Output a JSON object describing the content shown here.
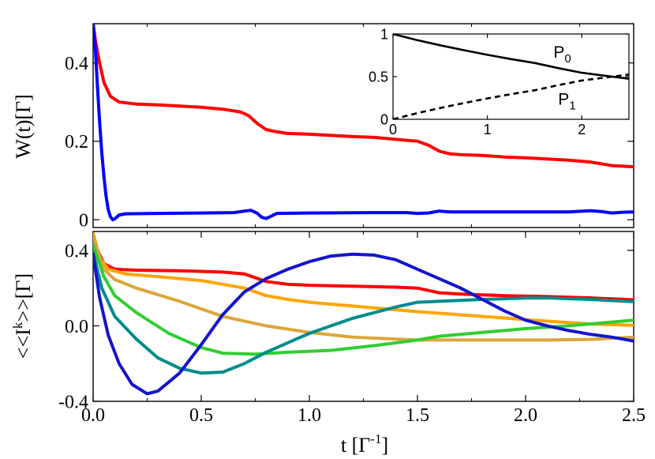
{
  "chart_data": [
    {
      "id": "top",
      "type": "line",
      "ylabel": "W(t)[Γ]",
      "xlim": [
        0,
        2.5
      ],
      "ylim": [
        -0.02,
        0.5
      ],
      "yticks": [
        {
          "v": 0.0,
          "label": "0"
        },
        {
          "v": 0.2,
          "label": "0.2"
        },
        {
          "v": 0.4,
          "label": "0.4"
        }
      ],
      "series": [
        {
          "name": "red",
          "color": "#ff0000",
          "points": [
            [
              0,
              0.5
            ],
            [
              0.01,
              0.46
            ],
            [
              0.03,
              0.4
            ],
            [
              0.05,
              0.35
            ],
            [
              0.08,
              0.315
            ],
            [
              0.12,
              0.3
            ],
            [
              0.2,
              0.295
            ],
            [
              0.3,
              0.293
            ],
            [
              0.4,
              0.29
            ],
            [
              0.5,
              0.287
            ],
            [
              0.6,
              0.282
            ],
            [
              0.68,
              0.275
            ],
            [
              0.72,
              0.265
            ],
            [
              0.76,
              0.245
            ],
            [
              0.8,
              0.23
            ],
            [
              0.85,
              0.224
            ],
            [
              0.9,
              0.22
            ],
            [
              1.0,
              0.218
            ],
            [
              1.1,
              0.215
            ],
            [
              1.2,
              0.212
            ],
            [
              1.3,
              0.21
            ],
            [
              1.4,
              0.205
            ],
            [
              1.5,
              0.2
            ],
            [
              1.55,
              0.19
            ],
            [
              1.6,
              0.175
            ],
            [
              1.65,
              0.168
            ],
            [
              1.7,
              0.166
            ],
            [
              1.8,
              0.164
            ],
            [
              1.9,
              0.16
            ],
            [
              2.0,
              0.158
            ],
            [
              2.1,
              0.155
            ],
            [
              2.2,
              0.152
            ],
            [
              2.3,
              0.147
            ],
            [
              2.4,
              0.138
            ],
            [
              2.5,
              0.135
            ]
          ]
        },
        {
          "name": "blue",
          "color": "#0000ff",
          "points": [
            [
              0,
              0.5
            ],
            [
              0.01,
              0.44
            ],
            [
              0.02,
              0.34
            ],
            [
              0.03,
              0.25
            ],
            [
              0.04,
              0.17
            ],
            [
              0.05,
              0.11
            ],
            [
              0.06,
              0.06
            ],
            [
              0.07,
              0.025
            ],
            [
              0.08,
              0.008
            ],
            [
              0.09,
              0.0
            ],
            [
              0.1,
              0.002
            ],
            [
              0.12,
              0.012
            ],
            [
              0.15,
              0.015
            ],
            [
              0.3,
              0.016
            ],
            [
              0.5,
              0.017
            ],
            [
              0.65,
              0.018
            ],
            [
              0.7,
              0.022
            ],
            [
              0.73,
              0.024
            ],
            [
              0.76,
              0.016
            ],
            [
              0.78,
              0.006
            ],
            [
              0.8,
              0.003
            ],
            [
              0.82,
              0.008
            ],
            [
              0.85,
              0.016
            ],
            [
              1.0,
              0.017
            ],
            [
              1.3,
              0.018
            ],
            [
              1.45,
              0.018
            ],
            [
              1.5,
              0.016
            ],
            [
              1.55,
              0.017
            ],
            [
              1.6,
              0.022
            ],
            [
              1.65,
              0.02
            ],
            [
              1.8,
              0.02
            ],
            [
              2.0,
              0.02
            ],
            [
              2.2,
              0.02
            ],
            [
              2.3,
              0.023
            ],
            [
              2.35,
              0.021
            ],
            [
              2.4,
              0.017
            ],
            [
              2.45,
              0.019
            ],
            [
              2.5,
              0.02
            ]
          ]
        }
      ]
    },
    {
      "id": "bottom",
      "type": "line",
      "xlabel_base": "t [Γ",
      "xlabel_sup": "-1",
      "xlabel_end": "]",
      "ylabel_base": "<<I",
      "ylabel_sup": "k",
      "ylabel_end": ">>[Γ]",
      "xlim": [
        0,
        2.5
      ],
      "ylim": [
        -0.4,
        0.5
      ],
      "xticks": [
        {
          "v": 0.0,
          "label": "0.0"
        },
        {
          "v": 0.5,
          "label": "0.5"
        },
        {
          "v": 1.0,
          "label": "1.0"
        },
        {
          "v": 1.5,
          "label": "1.5"
        },
        {
          "v": 2.0,
          "label": "2.0"
        },
        {
          "v": 2.5,
          "label": "2.5"
        }
      ],
      "yticks": [
        {
          "v": -0.4,
          "label": "-0.4"
        },
        {
          "v": 0.0,
          "label": "0.0"
        },
        {
          "v": 0.4,
          "label": "0.4"
        }
      ],
      "series": [
        {
          "name": "red",
          "color": "#ff0000",
          "points": [
            [
              0,
              0.49
            ],
            [
              0.02,
              0.4
            ],
            [
              0.05,
              0.33
            ],
            [
              0.1,
              0.3
            ],
            [
              0.2,
              0.295
            ],
            [
              0.4,
              0.292
            ],
            [
              0.6,
              0.285
            ],
            [
              0.7,
              0.275
            ],
            [
              0.75,
              0.255
            ],
            [
              0.8,
              0.235
            ],
            [
              0.9,
              0.22
            ],
            [
              1.0,
              0.215
            ],
            [
              1.2,
              0.21
            ],
            [
              1.4,
              0.205
            ],
            [
              1.5,
              0.2
            ],
            [
              1.6,
              0.175
            ],
            [
              1.7,
              0.168
            ],
            [
              1.9,
              0.16
            ],
            [
              2.1,
              0.155
            ],
            [
              2.3,
              0.148
            ],
            [
              2.5,
              0.138
            ]
          ]
        },
        {
          "name": "orange",
          "color": "#ffa500",
          "points": [
            [
              0,
              0.49
            ],
            [
              0.03,
              0.36
            ],
            [
              0.07,
              0.3
            ],
            [
              0.15,
              0.275
            ],
            [
              0.3,
              0.26
            ],
            [
              0.5,
              0.24
            ],
            [
              0.7,
              0.2
            ],
            [
              0.8,
              0.16
            ],
            [
              0.9,
              0.14
            ],
            [
              1.0,
              0.125
            ],
            [
              1.2,
              0.105
            ],
            [
              1.5,
              0.075
            ],
            [
              1.8,
              0.05
            ],
            [
              2.1,
              0.025
            ],
            [
              2.3,
              0.01
            ],
            [
              2.5,
              0.003
            ]
          ]
        },
        {
          "name": "goldenrod",
          "color": "#dba63a",
          "points": [
            [
              0,
              0.47
            ],
            [
              0.05,
              0.3
            ],
            [
              0.1,
              0.245
            ],
            [
              0.2,
              0.2
            ],
            [
              0.4,
              0.13
            ],
            [
              0.6,
              0.05
            ],
            [
              0.8,
              0.0
            ],
            [
              1.0,
              -0.035
            ],
            [
              1.2,
              -0.06
            ],
            [
              1.5,
              -0.075
            ],
            [
              1.8,
              -0.075
            ],
            [
              2.1,
              -0.075
            ],
            [
              2.3,
              -0.072
            ],
            [
              2.5,
              -0.06
            ]
          ]
        },
        {
          "name": "green",
          "color": "#32cd32",
          "points": [
            [
              0,
              0.43
            ],
            [
              0.05,
              0.26
            ],
            [
              0.1,
              0.16
            ],
            [
              0.2,
              0.07
            ],
            [
              0.35,
              -0.04
            ],
            [
              0.5,
              -0.115
            ],
            [
              0.6,
              -0.145
            ],
            [
              0.75,
              -0.15
            ],
            [
              0.9,
              -0.14
            ],
            [
              1.1,
              -0.13
            ],
            [
              1.3,
              -0.105
            ],
            [
              1.5,
              -0.075
            ],
            [
              1.6,
              -0.055
            ],
            [
              1.8,
              -0.035
            ],
            [
              2.0,
              -0.015
            ],
            [
              2.2,
              0.0
            ],
            [
              2.35,
              0.015
            ],
            [
              2.5,
              0.03
            ]
          ]
        },
        {
          "name": "teal",
          "color": "#008b8b",
          "points": [
            [
              0,
              0.39
            ],
            [
              0.04,
              0.2
            ],
            [
              0.1,
              0.05
            ],
            [
              0.2,
              -0.07
            ],
            [
              0.3,
              -0.17
            ],
            [
              0.4,
              -0.225
            ],
            [
              0.5,
              -0.25
            ],
            [
              0.6,
              -0.245
            ],
            [
              0.7,
              -0.2
            ],
            [
              0.8,
              -0.14
            ],
            [
              0.9,
              -0.09
            ],
            [
              1.0,
              -0.04
            ],
            [
              1.2,
              0.04
            ],
            [
              1.4,
              0.1
            ],
            [
              1.5,
              0.125
            ],
            [
              1.6,
              0.13
            ],
            [
              1.8,
              0.14
            ],
            [
              2.0,
              0.147
            ],
            [
              2.1,
              0.148
            ],
            [
              2.3,
              0.14
            ],
            [
              2.5,
              0.128
            ]
          ]
        },
        {
          "name": "darkblue",
          "color": "#1414cd",
          "points": [
            [
              0,
              0.38
            ],
            [
              0.03,
              0.15
            ],
            [
              0.07,
              -0.05
            ],
            [
              0.12,
              -0.2
            ],
            [
              0.18,
              -0.31
            ],
            [
              0.25,
              -0.36
            ],
            [
              0.3,
              -0.345
            ],
            [
              0.4,
              -0.25
            ],
            [
              0.5,
              -0.1
            ],
            [
              0.6,
              0.06
            ],
            [
              0.7,
              0.18
            ],
            [
              0.8,
              0.25
            ],
            [
              0.9,
              0.3
            ],
            [
              1.0,
              0.34
            ],
            [
              1.1,
              0.37
            ],
            [
              1.2,
              0.38
            ],
            [
              1.3,
              0.375
            ],
            [
              1.4,
              0.35
            ],
            [
              1.5,
              0.3
            ],
            [
              1.6,
              0.25
            ],
            [
              1.7,
              0.2
            ],
            [
              1.8,
              0.14
            ],
            [
              1.9,
              0.08
            ],
            [
              2.0,
              0.03
            ],
            [
              2.1,
              0.0
            ],
            [
              2.2,
              -0.025
            ],
            [
              2.3,
              -0.045
            ],
            [
              2.4,
              -0.06
            ],
            [
              2.5,
              -0.08
            ]
          ]
        }
      ]
    },
    {
      "id": "inset",
      "type": "line",
      "xlim": [
        0,
        2.5
      ],
      "ylim": [
        0,
        1
      ],
      "xticks": [
        {
          "v": 0,
          "label": "0"
        },
        {
          "v": 1,
          "label": "1"
        },
        {
          "v": 2,
          "label": "2"
        }
      ],
      "yticks": [
        {
          "v": 0,
          "label": "0"
        },
        {
          "v": 0.5,
          "label": "0.5"
        },
        {
          "v": 1,
          "label": "1"
        }
      ],
      "series": [
        {
          "name": "P0",
          "label_base": "P",
          "label_sub": "0",
          "label_xy": [
            1.7,
            0.72
          ],
          "dashed": false,
          "color": "#000000",
          "points": [
            [
              0,
              1.0
            ],
            [
              0.25,
              0.93
            ],
            [
              0.5,
              0.868
            ],
            [
              0.75,
              0.81
            ],
            [
              1.0,
              0.756
            ],
            [
              1.25,
              0.706
            ],
            [
              1.5,
              0.66
            ],
            [
              1.75,
              0.6
            ],
            [
              2.0,
              0.545
            ],
            [
              2.25,
              0.51
            ],
            [
              2.5,
              0.475
            ]
          ]
        },
        {
          "name": "P1",
          "label_base": "P",
          "label_sub": "1",
          "label_xy": [
            1.75,
            0.17
          ],
          "dashed": true,
          "color": "#000000",
          "points": [
            [
              0,
              0.0
            ],
            [
              0.25,
              0.07
            ],
            [
              0.5,
              0.132
            ],
            [
              0.75,
              0.19
            ],
            [
              1.0,
              0.244
            ],
            [
              1.25,
              0.294
            ],
            [
              1.5,
              0.34
            ],
            [
              1.75,
              0.4
            ],
            [
              2.0,
              0.455
            ],
            [
              2.25,
              0.49
            ],
            [
              2.5,
              0.525
            ]
          ]
        }
      ]
    }
  ]
}
